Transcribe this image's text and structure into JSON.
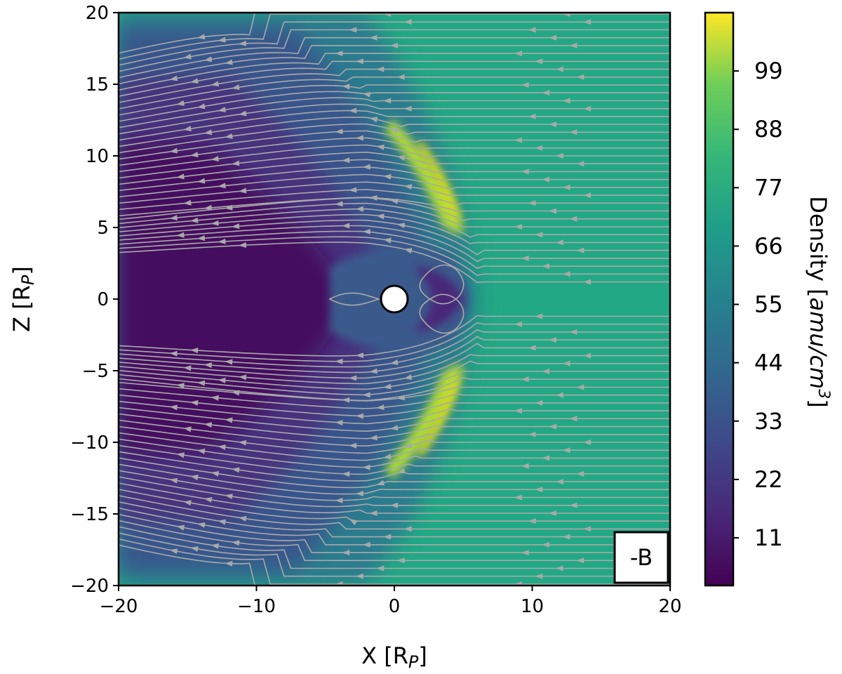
{
  "chart_data": {
    "type": "heatmap",
    "title": "",
    "xlabel": "X [R",
    "xlabel_sub": "P",
    "xlabel_close": "]",
    "ylabel": "Z [R",
    "ylabel_sub": "P",
    "ylabel_close": "]",
    "xlim": [
      -20,
      20
    ],
    "ylim": [
      -20,
      20
    ],
    "x_ticks": [
      -20,
      -10,
      0,
      10,
      20
    ],
    "x_tick_labels": [
      "−20",
      "−10",
      "0",
      "10",
      "20"
    ],
    "y_ticks": [
      20,
      15,
      10,
      5,
      0,
      -5,
      -10,
      -15,
      -20
    ],
    "y_tick_labels": [
      "20",
      "15",
      "10",
      "5",
      "0",
      "−5",
      "−10",
      "−15",
      "−20"
    ],
    "colormap": "viridis",
    "color_range": [
      2,
      110
    ],
    "colorbar_ticks": [
      99,
      88,
      77,
      66,
      55,
      44,
      33,
      22,
      11
    ],
    "colorbar_label": "Density [",
    "colorbar_label_unit": "amu/cm",
    "colorbar_label_exp": "3",
    "colorbar_label_close": "]",
    "panel_label": "-B",
    "planet": {
      "x": 0,
      "z": 0,
      "radius": 1,
      "color": "#ffffff"
    },
    "density_regions": [
      {
        "name": "solar wind",
        "value": 62
      },
      {
        "name": "magnetosheath peak",
        "value": 102
      },
      {
        "name": "magnetotail",
        "value": 8
      }
    ],
    "streamline_color": "#a9a9a9",
    "flow_direction": "-x",
    "bow_shock_nose_x": 6
  }
}
